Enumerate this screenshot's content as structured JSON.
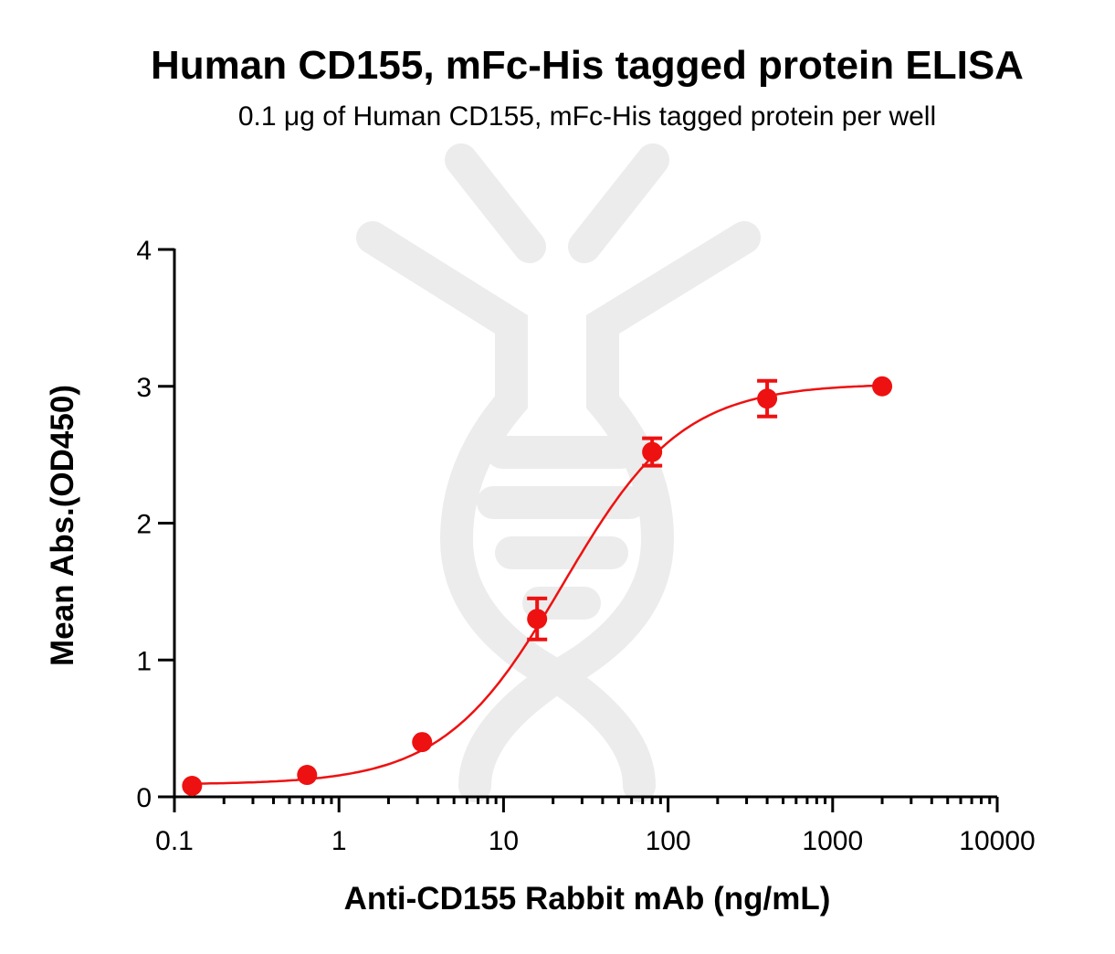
{
  "chart_data": {
    "type": "scatter",
    "title": "Human CD155, mFc-His tagged protein ELISA",
    "subtitle": "0.1 μg of Human CD155, mFc-His tagged protein per well",
    "xlabel": "Anti-CD155 Rabbit mAb (ng/mL)",
    "ylabel": "Mean Abs.(OD450)",
    "x_scale": "log",
    "xlim": [
      0.1,
      10000
    ],
    "ylim": [
      0,
      4
    ],
    "x_ticks": [
      0.1,
      1,
      10,
      100,
      1000,
      10000
    ],
    "x_tick_labels": [
      "0.1",
      "1",
      "10",
      "100",
      "1000",
      "10000"
    ],
    "y_ticks": [
      0,
      1,
      2,
      3,
      4
    ],
    "y_tick_labels": [
      "0",
      "1",
      "2",
      "3",
      "4"
    ],
    "grid": false,
    "legend": "none",
    "series": [
      {
        "color": "#ee1111",
        "marker": "circle",
        "fit": "4PL",
        "x": [
          0.128,
          0.64,
          3.2,
          16,
          80,
          400,
          2000
        ],
        "y": [
          0.08,
          0.16,
          0.4,
          1.3,
          2.52,
          2.91,
          3.0
        ],
        "error": [
          0.0,
          0.0,
          0.0,
          0.15,
          0.1,
          0.13,
          0.0
        ]
      }
    ],
    "fit_params": {
      "bottom": 0.09,
      "top": 3.02,
      "ec50": 23,
      "hill": 1.2
    }
  }
}
